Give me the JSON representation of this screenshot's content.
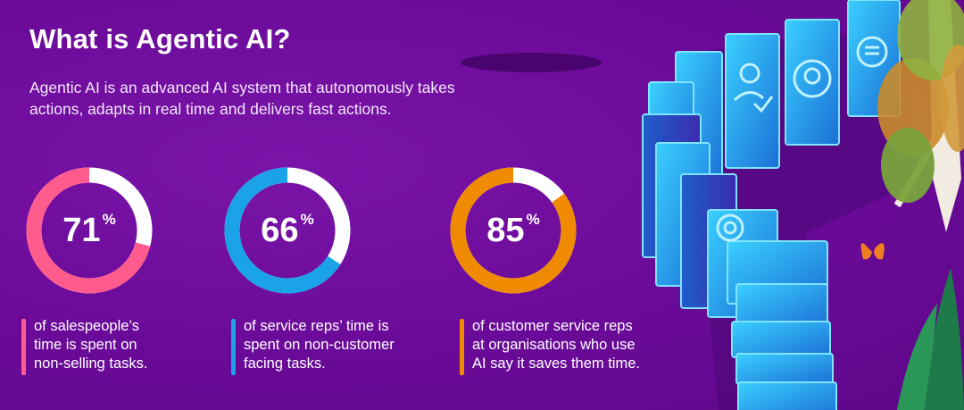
{
  "header": {
    "title": "What is Agentic AI?",
    "subtitle": "Agentic AI is an advanced AI system that autonomously takes actions, adapts in real time and delivers fast actions."
  },
  "stats": [
    {
      "value": "71",
      "unit": "%",
      "percent": 71,
      "color": "#ff5c8d",
      "caption_lines": [
        "of salespeople’s",
        "time is spent on",
        "non-selling tasks."
      ]
    },
    {
      "value": "66",
      "unit": "%",
      "percent": 66,
      "color": "#1aa3e8",
      "caption_lines": [
        "of service reps’ time is",
        "spent on non-customer",
        "facing tasks."
      ]
    },
    {
      "value": "85",
      "unit": "%",
      "percent": 85,
      "color": "#f08a00",
      "caption_lines": [
        "of customer service reps",
        "at organisations who use",
        "AI say it saves them time."
      ]
    }
  ],
  "colors": {
    "background": "#6b0a99",
    "ring_track": "#ffffff",
    "tile_glow": "#36c9ff"
  },
  "illustration": {
    "icons": [
      "person-check-icon",
      "headset-agent-icon",
      "chat-bubble-icon",
      "gear-icon"
    ],
    "decor": [
      "butterfly",
      "tree",
      "leaves"
    ]
  }
}
